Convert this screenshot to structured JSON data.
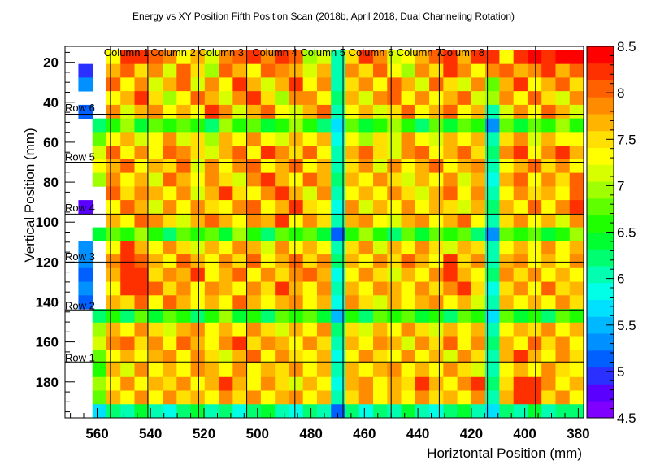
{
  "chart_data": {
    "type": "heatmap",
    "title": "Energy vs XY Position Fifth Position Scan (2018b, April 2018, Dual Channeling Rotation)",
    "xlabel": "Horiztontal Position (mm)",
    "ylabel": "Vertical Position (mm)",
    "x_axis": {
      "reversed": true,
      "range": [
        572,
        378
      ],
      "ticks": [
        560,
        540,
        520,
        500,
        480,
        460,
        440,
        420,
        400,
        380
      ],
      "tick_labels": [
        "560",
        "540",
        "520",
        "500",
        "480",
        "460",
        "440",
        "420",
        "400",
        "380"
      ]
    },
    "y_axis": {
      "reversed": true,
      "range": [
        12,
        198
      ],
      "ticks": [
        20,
        40,
        60,
        80,
        100,
        120,
        140,
        160,
        180
      ],
      "tick_labels": [
        "20",
        "40",
        "60",
        "80",
        "100",
        "120",
        "140",
        "160",
        "180"
      ]
    },
    "x_bin_edges": [
      567,
      378
    ],
    "y_bin_edges": [
      14,
      198
    ],
    "n_x_bins": 36,
    "n_y_bins": 27,
    "colorbar": {
      "range": [
        4.5,
        8.5
      ],
      "ticks": [
        4.5,
        5,
        5.5,
        6,
        6.5,
        7,
        7.5,
        8,
        8.5
      ],
      "tick_labels": [
        "4.5",
        "5",
        "5.5",
        "6",
        "6.5",
        "7",
        "7.5",
        "8",
        "8.5"
      ],
      "palette": [
        "#7f00ff",
        "#5a00ff",
        "#2a30ff",
        "#0060ff",
        "#0090ff",
        "#00b8ff",
        "#00e0ff",
        "#00ffe6",
        "#00ffb0",
        "#00ff70",
        "#00ff30",
        "#20ff00",
        "#60ff00",
        "#a0ff00",
        "#d8ff00",
        "#ffff00",
        "#ffe000",
        "#ffb400",
        "#ff8c00",
        "#ff6000",
        "#ff3000",
        "#ff0000"
      ]
    },
    "column_boundaries_x": [
      555,
      541,
      522,
      504,
      486,
      468,
      450,
      432,
      414,
      396
    ],
    "row_boundaries_y": [
      170,
      144,
      120,
      96,
      70,
      46
    ],
    "column_labels": [
      {
        "text": "Column 1",
        "x": 557.5
      },
      {
        "text": "Column 2",
        "x": 540
      },
      {
        "text": "Column 3",
        "x": 522
      },
      {
        "text": "Column 4",
        "x": 502
      },
      {
        "text": "Column 5",
        "x": 484
      },
      {
        "text": "Column 6",
        "x": 466
      },
      {
        "text": "Column 7",
        "x": 448
      },
      {
        "text": "Column 8",
        "x": 432
      }
    ],
    "row_labels": [
      {
        "text": "Row 1",
        "y": 168
      },
      {
        "text": "Row 2",
        "y": 142
      },
      {
        "text": "Row 3",
        "y": 117.5
      },
      {
        "text": "Row 4",
        "y": 93
      },
      {
        "text": "Row 5",
        "y": 67.5
      },
      {
        "text": "Row 6",
        "y": 43
      }
    ],
    "values": [
      [
        0,
        0,
        7.3,
        8.2,
        8.3,
        8.1,
        7.9,
        7.4,
        7.6,
        7.2,
        7.8,
        8.1,
        8.2,
        7.8,
        8.3,
        8.1,
        7.0,
        7.2,
        6.0,
        7.5,
        8.2,
        7.9,
        7.1,
        7.3,
        7.7,
        8.0,
        8.2,
        7.6,
        8.3,
        8.2,
        7.4,
        8.3,
        8.4,
        8.3,
        8.4,
        8.4
      ],
      [
        5.0,
        0,
        7.6,
        8.0,
        7.5,
        7.8,
        7.2,
        8.1,
        7.5,
        7.0,
        8.0,
        7.6,
        7.4,
        8.1,
        7.9,
        7.6,
        7.2,
        7.6,
        6.1,
        7.8,
        7.5,
        8.1,
        7.3,
        7.0,
        7.8,
        7.5,
        8.2,
        7.8,
        7.4,
        7.9,
        8.0,
        7.7,
        7.9,
        8.2,
        7.6,
        8.1
      ],
      [
        5.3,
        0,
        8.1,
        7.3,
        7.9,
        7.2,
        7.7,
        8.0,
        7.1,
        7.8,
        7.3,
        8.2,
        7.7,
        7.2,
        7.6,
        8.2,
        7.4,
        7.9,
        6.0,
        7.5,
        7.9,
        7.3,
        8.0,
        7.6,
        7.2,
        8.0,
        7.5,
        7.1,
        7.9,
        6.8,
        7.6,
        8.2,
        7.4,
        7.7,
        8.1,
        7.5
      ],
      [
        0,
        0,
        7.4,
        7.7,
        8.2,
        7.5,
        7.0,
        7.3,
        8.1,
        7.6,
        7.2,
        7.8,
        8.2,
        7.5,
        7.0,
        7.8,
        7.9,
        7.3,
        6.2,
        7.7,
        7.2,
        7.8,
        8.1,
        7.4,
        7.9,
        7.3,
        7.7,
        8.1,
        7.2,
        6.9,
        7.8,
        7.3,
        8.0,
        7.5,
        7.2,
        7.8
      ],
      [
        5.2,
        0,
        7.8,
        7.1,
        7.6,
        7.9,
        7.3,
        7.7,
        7.4,
        8.2,
        7.8,
        7.2,
        7.6,
        8.0,
        7.4,
        7.1,
        7.6,
        8.1,
        6.0,
        7.3,
        7.6,
        7.1,
        7.5,
        8.0,
        7.3,
        7.6,
        8.1,
        7.4,
        7.6,
        6.1,
        7.2,
        7.9,
        7.3,
        8.1,
        7.6,
        7.2
      ],
      [
        0,
        6.3,
        6.6,
        6.9,
        6.4,
        6.7,
        6.5,
        6.8,
        6.6,
        6.3,
        6.9,
        6.5,
        6.7,
        6.4,
        6.6,
        6.9,
        6.5,
        6.3,
        5.6,
        6.8,
        6.4,
        6.6,
        6.9,
        6.5,
        6.2,
        6.7,
        6.4,
        6.8,
        6.6,
        5.3,
        6.7,
        6.4,
        6.8,
        6.5,
        6.9,
        6.6
      ],
      [
        0,
        6.8,
        7.3,
        7.6,
        7.1,
        7.4,
        7.8,
        7.2,
        7.5,
        7.0,
        7.6,
        7.3,
        7.8,
        7.4,
        7.1,
        7.7,
        7.3,
        7.6,
        5.8,
        7.4,
        7.0,
        7.5,
        7.2,
        7.8,
        7.4,
        7.1,
        7.6,
        7.3,
        7.7,
        6.0,
        7.5,
        7.9,
        7.2,
        7.6,
        7.3,
        7.4
      ],
      [
        0,
        7.2,
        8.0,
        7.4,
        7.8,
        7.3,
        8.1,
        7.9,
        7.5,
        7.2,
        7.7,
        8.0,
        7.4,
        8.2,
        7.8,
        7.5,
        8.0,
        7.3,
        6.1,
        7.6,
        8.1,
        7.5,
        7.2,
        7.8,
        8.0,
        7.4,
        7.7,
        8.1,
        7.5,
        6.2,
        7.8,
        8.2,
        7.4,
        7.9,
        8.2,
        7.6
      ],
      [
        0,
        7.4,
        7.6,
        8.1,
        7.3,
        7.7,
        7.5,
        8.0,
        7.2,
        7.8,
        7.4,
        7.9,
        8.1,
        7.3,
        7.6,
        8.0,
        7.4,
        7.7,
        6.0,
        7.5,
        7.8,
        7.2,
        7.9,
        7.4,
        7.6,
        8.1,
        7.3,
        7.7,
        7.9,
        6.1,
        7.4,
        7.7,
        8.0,
        7.5,
        7.8,
        7.4
      ],
      [
        0,
        7.0,
        7.8,
        7.3,
        7.7,
        7.2,
        8.0,
        7.6,
        7.4,
        7.9,
        7.5,
        7.2,
        7.8,
        8.2,
        7.7,
        7.4,
        8.1,
        7.6,
        6.2,
        7.7,
        7.3,
        7.8,
        7.5,
        7.1,
        7.7,
        7.4,
        7.9,
        7.2,
        7.6,
        5.8,
        7.6,
        8.0,
        7.3,
        7.8,
        7.5,
        8.0
      ],
      [
        0,
        0,
        8.1,
        7.5,
        7.9,
        7.6,
        7.3,
        7.8,
        7.2,
        7.6,
        8.2,
        7.5,
        7.3,
        7.9,
        8.2,
        7.6,
        7.2,
        7.8,
        6.0,
        7.4,
        7.7,
        7.3,
        7.8,
        7.5,
        7.2,
        7.6,
        8.0,
        7.4,
        7.8,
        6.0,
        7.3,
        7.8,
        7.5,
        7.7,
        7.4,
        8.1
      ],
      [
        4.8,
        0,
        7.4,
        8.0,
        7.6,
        7.2,
        7.8,
        7.4,
        7.9,
        7.5,
        7.3,
        7.8,
        8.1,
        7.4,
        7.7,
        8.2,
        7.5,
        7.3,
        5.9,
        7.8,
        7.2,
        7.6,
        7.4,
        7.9,
        7.3,
        7.7,
        7.5,
        7.2,
        7.6,
        6.2,
        7.7,
        7.4,
        8.0,
        7.3,
        7.8,
        8.3
      ],
      [
        0,
        0,
        7.7,
        7.3,
        8.1,
        7.8,
        7.5,
        7.2,
        7.7,
        8.0,
        7.6,
        7.3,
        7.9,
        7.6,
        8.2,
        7.4,
        7.8,
        7.5,
        6.1,
        7.6,
        7.9,
        7.4,
        7.1,
        7.6,
        7.9,
        7.3,
        7.7,
        8.0,
        7.4,
        6.0,
        7.5,
        7.8,
        7.3,
        7.6,
        7.2,
        7.9
      ],
      [
        0,
        6.4,
        6.8,
        6.5,
        6.9,
        6.6,
        6.3,
        6.8,
        6.5,
        6.7,
        6.4,
        6.9,
        6.6,
        6.3,
        6.7,
        6.5,
        6.8,
        6.4,
        5.2,
        6.6,
        6.9,
        6.5,
        6.2,
        6.7,
        6.4,
        6.8,
        6.5,
        6.7,
        6.3,
        5.4,
        6.8,
        6.5,
        6.7,
        6.4,
        6.6,
        6.9
      ],
      [
        5.4,
        0,
        7.4,
        8.2,
        7.6,
        7.3,
        7.8,
        7.5,
        7.2,
        7.7,
        7.4,
        7.9,
        7.6,
        7.2,
        7.8,
        7.4,
        7.7,
        7.3,
        6.0,
        7.5,
        7.8,
        7.2,
        7.6,
        7.4,
        7.9,
        7.5,
        7.2,
        7.7,
        7.5,
        6.1,
        7.4,
        7.7,
        7.3,
        7.8,
        7.4,
        7.6
      ],
      [
        5.3,
        0,
        7.8,
        8.3,
        8.1,
        7.7,
        7.4,
        8.0,
        7.6,
        7.3,
        7.8,
        7.5,
        8.0,
        7.4,
        7.7,
        8.1,
        7.5,
        7.9,
        6.2,
        7.7,
        7.3,
        7.8,
        7.5,
        8.1,
        7.6,
        7.3,
        8.2,
        7.5,
        7.8,
        6.0,
        7.6,
        7.9,
        7.4,
        7.7,
        7.3,
        7.8
      ],
      [
        5.2,
        0,
        7.6,
        8.2,
        8.3,
        7.5,
        7.9,
        7.6,
        8.2,
        7.4,
        7.7,
        8.0,
        7.3,
        7.8,
        7.5,
        7.9,
        8.1,
        7.6,
        5.9,
        7.4,
        7.9,
        7.5,
        7.2,
        7.7,
        7.4,
        7.8,
        8.3,
        7.6,
        7.3,
        6.3,
        7.8,
        7.5,
        7.9,
        7.4,
        7.7,
        7.3
      ],
      [
        5.4,
        0,
        7.3,
        8.3,
        8.2,
        8.0,
        7.5,
        7.8,
        7.4,
        7.9,
        7.6,
        7.3,
        7.8,
        7.5,
        8.2,
        7.6,
        7.4,
        7.8,
        6.1,
        7.6,
        7.3,
        7.8,
        7.6,
        7.3,
        7.8,
        7.5,
        7.9,
        8.2,
        7.5,
        5.9,
        7.5,
        7.8,
        7.4,
        8.0,
        7.5,
        7.7
      ],
      [
        5.1,
        0,
        7.7,
        7.5,
        8.1,
        7.3,
        8.0,
        7.6,
        7.3,
        7.7,
        7.4,
        8.0,
        7.7,
        7.3,
        7.6,
        7.9,
        7.3,
        7.6,
        5.8,
        7.8,
        7.5,
        7.2,
        7.7,
        7.4,
        7.6,
        7.9,
        7.4,
        7.7,
        7.2,
        6.1,
        7.7,
        7.3,
        7.6,
        7.4,
        7.9,
        7.5
      ],
      [
        0,
        6.2,
        6.6,
        6.3,
        6.7,
        6.4,
        6.8,
        6.5,
        6.2,
        6.6,
        6.9,
        6.4,
        6.6,
        6.3,
        6.7,
        6.5,
        6.8,
        6.4,
        5.5,
        6.6,
        6.3,
        6.7,
        6.5,
        6.8,
        6.4,
        6.6,
        6.3,
        6.7,
        6.5,
        5.6,
        6.8,
        6.4,
        6.6,
        6.3,
        6.7,
        6.5
      ],
      [
        0,
        6.9,
        7.7,
        7.3,
        7.8,
        7.5,
        7.2,
        7.6,
        7.9,
        7.3,
        7.7,
        7.4,
        7.8,
        7.5,
        7.2,
        7.7,
        7.4,
        7.8,
        6.2,
        7.5,
        7.2,
        7.6,
        7.3,
        7.9,
        7.5,
        7.2,
        7.7,
        7.4,
        7.6,
        6.0,
        7.3,
        7.7,
        7.5,
        7.8,
        7.4,
        7.6
      ],
      [
        0,
        7.1,
        7.9,
        8.1,
        7.5,
        7.8,
        7.4,
        8.0,
        7.6,
        7.3,
        7.8,
        8.2,
        7.5,
        7.9,
        7.6,
        7.3,
        7.8,
        7.5,
        6.0,
        7.7,
        7.4,
        7.9,
        7.6,
        7.2,
        7.8,
        7.5,
        8.0,
        7.3,
        7.8,
        6.2,
        7.6,
        7.3,
        8.1,
        7.5,
        7.8,
        7.4
      ],
      [
        0,
        6.8,
        7.4,
        7.7,
        7.3,
        7.6,
        7.9,
        7.4,
        7.8,
        7.5,
        7.2,
        7.7,
        8.0,
        7.4,
        7.8,
        7.5,
        7.3,
        7.7,
        5.9,
        7.4,
        7.8,
        7.5,
        7.3,
        7.8,
        7.4,
        7.7,
        7.2,
        7.9,
        7.5,
        6.0,
        7.7,
        8.2,
        7.6,
        7.3,
        7.8,
        7.5
      ],
      [
        0,
        6.6,
        7.6,
        7.2,
        7.8,
        7.4,
        7.7,
        7.3,
        7.9,
        7.6,
        7.4,
        7.8,
        7.3,
        7.7,
        7.5,
        7.8,
        7.4,
        7.6,
        6.1,
        7.7,
        7.3,
        7.6,
        7.9,
        7.4,
        7.7,
        7.3,
        7.8,
        7.5,
        7.2,
        6.1,
        7.4,
        7.7,
        7.3,
        7.9,
        7.5,
        7.3
      ],
      [
        0,
        6.9,
        7.3,
        7.8,
        7.4,
        7.7,
        7.5,
        7.9,
        7.3,
        7.7,
        8.3,
        7.6,
        7.4,
        7.9,
        7.5,
        7.2,
        7.7,
        7.4,
        5.8,
        7.6,
        7.9,
        7.4,
        7.7,
        7.5,
        8.2,
        7.6,
        7.3,
        7.8,
        8.3,
        6.2,
        7.5,
        8.2,
        8.3,
        7.8,
        7.4,
        7.7
      ],
      [
        0,
        6.7,
        7.6,
        7.4,
        7.9,
        7.3,
        7.8,
        7.5,
        7.7,
        7.4,
        7.9,
        7.5,
        7.8,
        7.3,
        7.6,
        7.9,
        7.4,
        7.7,
        6.0,
        7.5,
        7.8,
        7.3,
        7.6,
        7.4,
        7.9,
        7.5,
        7.7,
        7.4,
        7.8,
        6.1,
        7.7,
        8.3,
        8.2,
        7.5,
        7.8,
        7.4
      ],
      [
        0,
        5.6,
        6.3,
        6.0,
        6.4,
        6.1,
        5.8,
        6.2,
        6.4,
        6.0,
        6.3,
        5.9,
        6.2,
        6.4,
        6.1,
        5.8,
        6.3,
        6.0,
        5.2,
        6.2,
        5.9,
        6.3,
        6.0,
        6.4,
        6.1,
        5.8,
        6.2,
        6.4,
        6.0,
        5.7,
        6.3,
        6.1,
        6.4,
        6.0,
        6.2,
        6.3
      ]
    ]
  }
}
